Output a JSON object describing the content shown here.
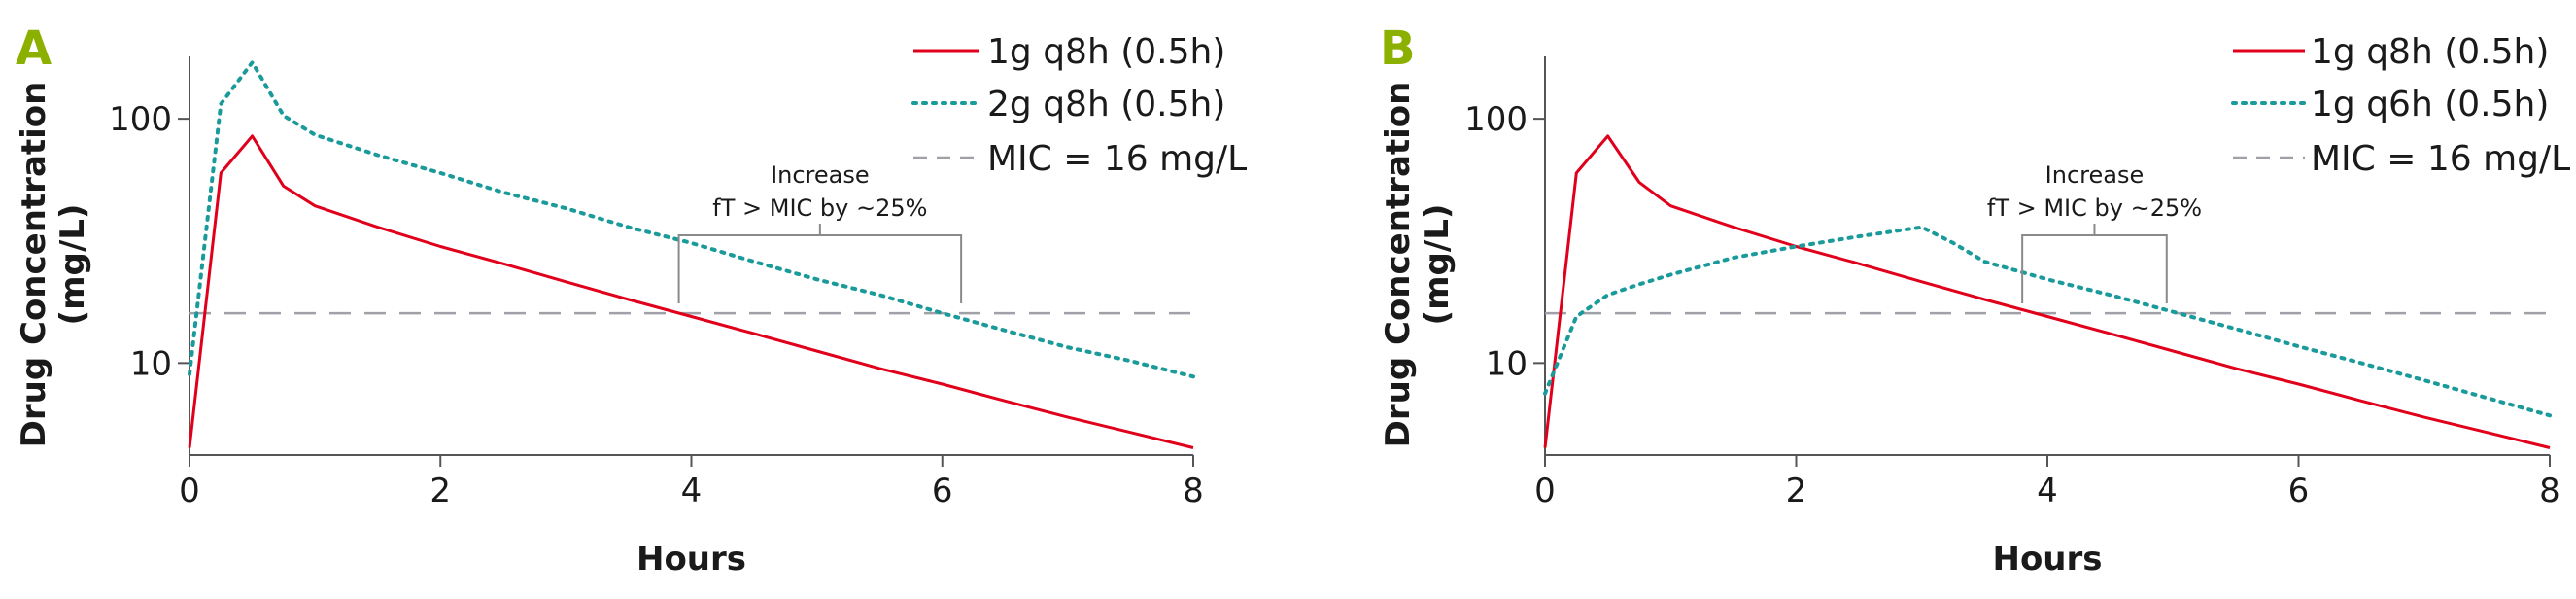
{
  "colors": {
    "panel_letter": "#8cb000",
    "series_red": "#e0001b",
    "series_teal": "#1a9a9a",
    "mic_line": "#a0a0a8",
    "axis": "#555555",
    "bracket": "#8a8a8a"
  },
  "chart_data": [
    {
      "type": "line",
      "panel_label": "A",
      "xlabel": "Hours",
      "ylabel_line1": "Drug Concentration",
      "ylabel_line2": "(mg/L)",
      "yscale": "log",
      "xlim": [
        0,
        8
      ],
      "ylim": [
        4.2,
        180
      ],
      "x_ticks": [
        0,
        2,
        4,
        6,
        8
      ],
      "x_tick_labels": [
        "0",
        "2",
        "4",
        "6",
        "8"
      ],
      "y_ticks": [
        10,
        100
      ],
      "y_tick_labels": [
        "10",
        "100"
      ],
      "series": [
        {
          "name": "1g q8h (0.5h)",
          "style": "solid",
          "color": "#e0001b",
          "x": [
            0,
            0.25,
            0.5,
            0.75,
            1,
            1.5,
            2,
            2.5,
            3,
            3.5,
            4,
            4.5,
            5,
            5.5,
            6,
            6.5,
            7,
            7.5,
            8
          ],
          "y": [
            4.5,
            60,
            85,
            53,
            44,
            36,
            30,
            25.5,
            21.5,
            18.2,
            15.5,
            13.2,
            11.2,
            9.5,
            8.2,
            7,
            6,
            5.2,
            4.5
          ]
        },
        {
          "name": "2g q8h (0.5h)",
          "style": "dotted",
          "color": "#1a9a9a",
          "x": [
            0,
            0.25,
            0.5,
            0.75,
            1,
            1.5,
            2,
            2.5,
            3,
            3.5,
            4,
            4.5,
            5,
            5.5,
            6,
            6.5,
            7,
            7.5,
            8
          ],
          "y": [
            9,
            115,
            170,
            103,
            86,
            71,
            60,
            50,
            43,
            36,
            31,
            26,
            22,
            19,
            16,
            13.6,
            11.6,
            10.2,
            8.8
          ]
        }
      ],
      "reference_line": {
        "label": "MIC = 16 mg/L",
        "y": 16,
        "style": "dashed"
      },
      "bracket": {
        "x1": 3.9,
        "x2": 6.15,
        "line1": "Increase",
        "line2": "fT > MIC by ~25%"
      },
      "legend": [
        "1g q8h (0.5h)",
        "2g q8h (0.5h)",
        "MIC = 16 mg/L"
      ],
      "legend_position": "top-right"
    },
    {
      "type": "line",
      "panel_label": "B",
      "xlabel": "Hours",
      "ylabel_line1": "Drug Concentration",
      "ylabel_line2": "(mg/L)",
      "yscale": "log",
      "xlim": [
        0,
        8
      ],
      "ylim": [
        4.2,
        180
      ],
      "x_ticks": [
        0,
        2,
        4,
        6,
        8
      ],
      "x_tick_labels": [
        "0",
        "2",
        "4",
        "6",
        "8"
      ],
      "y_ticks": [
        10,
        100
      ],
      "y_tick_labels": [
        "10",
        "100"
      ],
      "series": [
        {
          "name": "1g q8h (0.5h)",
          "style": "solid",
          "color": "#e0001b",
          "x": [
            0,
            0.25,
            0.5,
            0.75,
            1,
            1.5,
            2,
            2.5,
            3,
            3.5,
            4,
            4.5,
            5,
            5.5,
            6,
            6.5,
            7,
            7.5,
            8
          ],
          "y": [
            4.5,
            60,
            85,
            55,
            44,
            36,
            30,
            25.5,
            21.5,
            18.2,
            15.5,
            13.2,
            11.2,
            9.5,
            8.2,
            7,
            6,
            5.2,
            4.5
          ]
        },
        {
          "name": "1g q6h (0.5h)",
          "style": "dotted",
          "color": "#1a9a9a",
          "x": [
            0,
            0.25,
            0.5,
            0.75,
            1,
            1.5,
            2,
            2.5,
            3,
            3.25,
            3.5,
            4,
            4.5,
            5,
            5.5,
            6,
            6.5,
            7,
            7.5,
            8
          ],
          "y": [
            7.5,
            15.5,
            19,
            21,
            23,
            27,
            30,
            33,
            36,
            31,
            26,
            22,
            19,
            16.2,
            13.8,
            11.7,
            10,
            8.5,
            7.2,
            6.1
          ]
        }
      ],
      "reference_line": {
        "label": "MIC = 16 mg/L",
        "y": 16,
        "style": "dashed"
      },
      "bracket": {
        "x1": 3.8,
        "x2": 4.95,
        "line1": "Increase",
        "line2": "fT > MIC by ~25%"
      },
      "legend": [
        "1g q8h (0.5h)",
        "1g q6h (0.5h)",
        "MIC = 16 mg/L"
      ],
      "legend_position": "top-right"
    }
  ]
}
